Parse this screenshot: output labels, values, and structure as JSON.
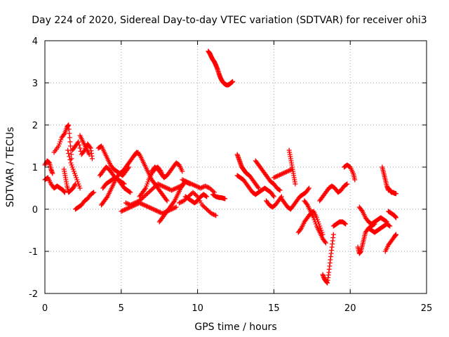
{
  "chart_data": {
    "type": "scatter",
    "title": "Day 224 of 2020, Sidereal Day-to-day VTEC variation (SDTVAR) for receiver ohi3",
    "xlabel": "GPS time / hours",
    "ylabel": "SDTVAR / TECUs",
    "xlim": [
      0,
      25
    ],
    "ylim": [
      -2,
      4
    ],
    "x_ticks": [
      0,
      5,
      10,
      15,
      20,
      25
    ],
    "y_ticks": [
      -2,
      -1,
      0,
      1,
      2,
      3,
      4
    ],
    "grid": true,
    "marker": "+",
    "color": "#ff0000",
    "series": [
      {
        "name": "SDTVAR",
        "segments": [
          {
            "x": [
              0.0,
              0.15,
              0.3,
              0.4,
              0.5
            ],
            "y": [
              1.05,
              1.15,
              1.1,
              0.95,
              0.85
            ]
          },
          {
            "x": [
              0.0,
              0.2,
              0.4,
              0.6,
              0.8,
              1.0,
              1.2,
              1.3
            ],
            "y": [
              0.7,
              0.75,
              0.6,
              0.5,
              0.55,
              0.5,
              0.45,
              0.4
            ]
          },
          {
            "x": [
              0.6,
              0.9,
              1.1,
              1.3,
              1.45,
              1.55,
              1.65,
              1.75
            ],
            "y": [
              1.35,
              1.5,
              1.7,
              1.8,
              1.95,
              2.0,
              1.6,
              1.2
            ]
          },
          {
            "x": [
              1.25,
              1.35,
              1.45,
              1.55,
              1.7,
              1.85,
              2.0
            ],
            "y": [
              0.95,
              0.75,
              0.55,
              0.4,
              0.45,
              0.5,
              0.6
            ]
          },
          {
            "x": [
              1.5,
              1.7,
              1.9,
              2.1,
              2.3
            ],
            "y": [
              1.4,
              1.1,
              0.9,
              0.7,
              0.5
            ]
          },
          {
            "x": [
              1.8,
              2.0,
              2.2,
              2.4,
              2.6,
              2.8,
              3.0,
              3.1
            ],
            "y": [
              1.4,
              1.5,
              1.6,
              1.3,
              1.4,
              1.55,
              1.45,
              1.2
            ]
          },
          {
            "x": [
              2.0,
              2.2,
              2.4,
              2.6,
              2.8,
              3.0,
              3.2
            ],
            "y": [
              0.0,
              0.05,
              0.1,
              0.2,
              0.25,
              0.35,
              0.4
            ]
          },
          {
            "x": [
              2.3,
              2.5,
              2.7,
              2.9
            ],
            "y": [
              1.75,
              1.6,
              1.45,
              1.3
            ]
          },
          {
            "x": [
              3.5,
              3.7,
              3.9,
              4.1,
              4.3,
              4.5,
              4.7,
              4.9,
              5.1,
              5.3,
              5.5
            ],
            "y": [
              1.45,
              1.5,
              1.35,
              1.2,
              1.05,
              0.95,
              0.9,
              0.85,
              0.8,
              0.9,
              1.0
            ]
          },
          {
            "x": [
              3.6,
              3.8,
              4.0,
              4.2,
              4.4,
              4.6,
              4.8,
              5.0,
              5.2
            ],
            "y": [
              0.8,
              0.9,
              1.0,
              0.95,
              0.85,
              0.75,
              0.7,
              0.65,
              0.6
            ]
          },
          {
            "x": [
              3.7,
              3.9,
              4.1,
              4.3,
              4.5,
              4.7,
              4.9,
              5.1,
              5.3,
              5.5,
              5.7,
              5.9,
              6.1
            ],
            "y": [
              0.1,
              0.2,
              0.3,
              0.45,
              0.6,
              0.75,
              0.85,
              0.9,
              1.0,
              1.1,
              1.2,
              1.3,
              1.35
            ]
          },
          {
            "x": [
              3.8,
              4.0,
              4.2,
              4.4,
              4.6,
              4.8,
              5.0,
              5.2,
              5.4,
              5.6
            ],
            "y": [
              0.5,
              0.6,
              0.65,
              0.7,
              0.75,
              0.7,
              0.6,
              0.5,
              0.45,
              0.4
            ]
          },
          {
            "x": [
              5.3,
              5.6,
              5.9,
              6.2,
              6.5,
              6.8,
              7.1,
              7.4,
              7.7,
              8.0,
              8.3,
              8.6,
              8.9,
              9.2,
              9.5
            ],
            "y": [
              0.15,
              0.1,
              0.15,
              0.2,
              0.3,
              0.4,
              0.5,
              0.6,
              0.55,
              0.5,
              0.45,
              0.5,
              0.55,
              0.65,
              0.6
            ]
          },
          {
            "x": [
              5.0,
              5.3,
              5.6,
              5.9,
              6.2,
              6.5,
              6.8,
              7.1,
              7.4,
              7.7,
              8.0,
              8.3,
              8.6
            ],
            "y": [
              -0.05,
              0.0,
              0.05,
              0.1,
              0.15,
              0.1,
              0.05,
              0.0,
              -0.05,
              -0.1,
              -0.05,
              0.0,
              0.05
            ]
          },
          {
            "x": [
              5.8,
              6.0,
              6.2,
              6.4,
              6.6,
              6.8,
              7.0,
              7.2,
              7.4,
              7.6,
              7.8,
              8.0
            ],
            "y": [
              1.25,
              1.35,
              1.3,
              1.15,
              1.0,
              0.85,
              0.7,
              0.6,
              0.5,
              0.4,
              0.3,
              0.2
            ]
          },
          {
            "x": [
              6.2,
              6.4,
              6.6,
              6.8,
              7.0,
              7.2,
              7.4,
              7.6,
              7.8
            ],
            "y": [
              0.3,
              0.4,
              0.5,
              0.7,
              0.85,
              0.95,
              1.0,
              0.9,
              0.75
            ]
          },
          {
            "x": [
              7.0,
              7.2,
              7.4,
              7.6,
              7.8,
              8.0,
              8.2,
              8.4,
              8.6,
              8.8,
              9.0
            ],
            "y": [
              0.9,
              1.0,
              0.95,
              0.85,
              0.75,
              0.8,
              0.9,
              1.0,
              1.1,
              1.05,
              0.9
            ]
          },
          {
            "x": [
              7.5,
              7.7,
              7.9,
              8.1,
              8.3,
              8.5,
              8.7,
              8.9,
              9.1
            ],
            "y": [
              -0.3,
              -0.2,
              -0.1,
              0.0,
              0.1,
              0.2,
              0.35,
              0.5,
              0.6
            ]
          },
          {
            "x": [
              9.0,
              9.3,
              9.6,
              9.9,
              10.2,
              10.5,
              10.8,
              11.1
            ],
            "y": [
              0.7,
              0.65,
              0.6,
              0.55,
              0.5,
              0.55,
              0.5,
              0.4
            ]
          },
          {
            "x": [
              9.2,
              9.4,
              9.6,
              9.8,
              10.0,
              10.2,
              10.4,
              10.6
            ],
            "y": [
              0.3,
              0.25,
              0.2,
              0.15,
              0.2,
              0.3,
              0.35,
              0.3
            ]
          },
          {
            "x": [
              8.8,
              9.1,
              9.4,
              9.7,
              10.0,
              10.3,
              10.6,
              10.9,
              11.2
            ],
            "y": [
              0.15,
              0.2,
              0.3,
              0.4,
              0.3,
              0.1,
              0.0,
              -0.1,
              -0.15
            ]
          },
          {
            "x": [
              11.0,
              11.2,
              11.4,
              11.6,
              11.8
            ],
            "y": [
              0.35,
              0.3,
              0.28,
              0.27,
              0.25
            ]
          },
          {
            "x": [
              10.7,
              10.8,
              10.9,
              11.0,
              11.1,
              11.2,
              11.3,
              11.4,
              11.5,
              11.6,
              11.7,
              11.8,
              11.9,
              12.0,
              12.1,
              12.2,
              12.3
            ],
            "y": [
              3.75,
              3.7,
              3.62,
              3.55,
              3.5,
              3.42,
              3.33,
              3.22,
              3.12,
              3.05,
              3.0,
              2.97,
              2.95,
              2.95,
              2.97,
              3.0,
              3.03
            ]
          },
          {
            "x": [
              12.6,
              12.7,
              12.8,
              12.9,
              13.0,
              13.1,
              13.2,
              13.4,
              13.6,
              13.8,
              14.0
            ],
            "y": [
              1.3,
              1.2,
              1.1,
              1.0,
              0.95,
              0.9,
              0.85,
              0.8,
              0.7,
              0.6,
              0.5
            ]
          },
          {
            "x": [
              12.6,
              12.8,
              13.0,
              13.2,
              13.4,
              13.6,
              13.8,
              14.0,
              14.2,
              14.4,
              14.6,
              14.8,
              15.0
            ],
            "y": [
              0.8,
              0.75,
              0.7,
              0.6,
              0.5,
              0.4,
              0.35,
              0.4,
              0.45,
              0.5,
              0.45,
              0.4,
              0.3
            ]
          },
          {
            "x": [
              13.8,
              14.0,
              14.2,
              14.4,
              14.6,
              14.8,
              15.0,
              15.2,
              15.4
            ],
            "y": [
              1.15,
              1.05,
              0.95,
              0.85,
              0.75,
              0.65,
              0.6,
              0.5,
              0.45
            ]
          },
          {
            "x": [
              14.5,
              14.7,
              14.9,
              15.1,
              15.3,
              15.5
            ],
            "y": [
              0.2,
              0.1,
              0.05,
              0.1,
              0.2,
              0.3
            ]
          },
          {
            "x": [
              15.0,
              15.3,
              15.6,
              15.9,
              16.2
            ],
            "y": [
              0.75,
              0.8,
              0.85,
              0.9,
              0.95
            ]
          },
          {
            "x": [
              16.0,
              16.1,
              16.2,
              16.3,
              16.4
            ],
            "y": [
              1.4,
              1.2,
              1.0,
              0.8,
              0.6
            ]
          },
          {
            "x": [
              15.5,
              15.7,
              15.9,
              16.1,
              16.3,
              16.5,
              16.7,
              16.9,
              17.1,
              17.3
            ],
            "y": [
              0.25,
              0.15,
              0.05,
              0.0,
              0.1,
              0.2,
              0.3,
              0.35,
              0.4,
              0.5
            ]
          },
          {
            "x": [
              16.6,
              16.8,
              17.0,
              17.2,
              17.4,
              17.6,
              17.8,
              18.0,
              18.2
            ],
            "y": [
              -0.55,
              -0.45,
              -0.3,
              -0.2,
              -0.1,
              -0.05,
              -0.2,
              -0.4,
              -0.6
            ]
          },
          {
            "x": [
              17.0,
              17.2,
              17.4,
              17.6,
              17.8,
              18.0,
              18.2,
              18.4
            ],
            "y": [
              0.2,
              0.1,
              -0.05,
              -0.2,
              -0.4,
              -0.55,
              -0.7,
              -0.8
            ]
          },
          {
            "x": [
              18.2,
              18.3,
              18.4,
              18.5,
              18.6,
              18.7,
              18.8,
              18.9
            ],
            "y": [
              -1.55,
              -1.65,
              -1.7,
              -1.75,
              -1.5,
              -1.2,
              -0.9,
              -0.6
            ]
          },
          {
            "x": [
              18.9,
              19.1,
              19.3,
              19.5,
              19.7
            ],
            "y": [
              -0.4,
              -0.35,
              -0.3,
              -0.3,
              -0.35
            ]
          },
          {
            "x": [
              18.0,
              18.2,
              18.4,
              18.6,
              18.8,
              19.0,
              19.2,
              19.4,
              19.6,
              19.8
            ],
            "y": [
              0.2,
              0.3,
              0.4,
              0.5,
              0.55,
              0.5,
              0.4,
              0.45,
              0.55,
              0.6
            ]
          },
          {
            "x": [
              19.6,
              19.8,
              20.0,
              20.2,
              20.3
            ],
            "y": [
              1.0,
              1.05,
              1.0,
              0.85,
              0.7
            ]
          },
          {
            "x": [
              20.5,
              20.6,
              20.7,
              20.8,
              20.9,
              21.0,
              21.2,
              21.4,
              21.6
            ],
            "y": [
              -0.9,
              -1.05,
              -1.0,
              -0.85,
              -0.7,
              -0.55,
              -0.45,
              -0.4,
              -0.35
            ]
          },
          {
            "x": [
              20.6,
              20.8,
              21.0,
              21.2,
              21.4,
              21.6,
              21.8,
              22.0,
              22.2,
              22.4
            ],
            "y": [
              0.05,
              -0.05,
              -0.2,
              -0.3,
              -0.35,
              -0.3,
              -0.25,
              -0.2,
              -0.25,
              -0.3
            ]
          },
          {
            "x": [
              21.2,
              21.4,
              21.6,
              21.8,
              22.0,
              22.2,
              22.4,
              22.6
            ],
            "y": [
              -0.45,
              -0.5,
              -0.55,
              -0.5,
              -0.45,
              -0.4,
              -0.35,
              -0.4
            ]
          },
          {
            "x": [
              22.1,
              22.2,
              22.3,
              22.4,
              22.5
            ],
            "y": [
              1.0,
              0.85,
              0.7,
              0.55,
              0.45
            ]
          },
          {
            "x": [
              22.5,
              22.6,
              22.7,
              22.8,
              22.9,
              23.0
            ],
            "y": [
              0.5,
              0.45,
              0.4,
              0.4,
              0.38,
              0.37
            ]
          },
          {
            "x": [
              22.3,
              22.5,
              22.7,
              22.9,
              23.0
            ],
            "y": [
              -1.0,
              -0.85,
              -0.75,
              -0.65,
              -0.6
            ]
          },
          {
            "x": [
              22.5,
              22.7,
              22.9,
              23.0
            ],
            "y": [
              -0.05,
              -0.1,
              -0.15,
              -0.2
            ]
          }
        ]
      }
    ]
  }
}
